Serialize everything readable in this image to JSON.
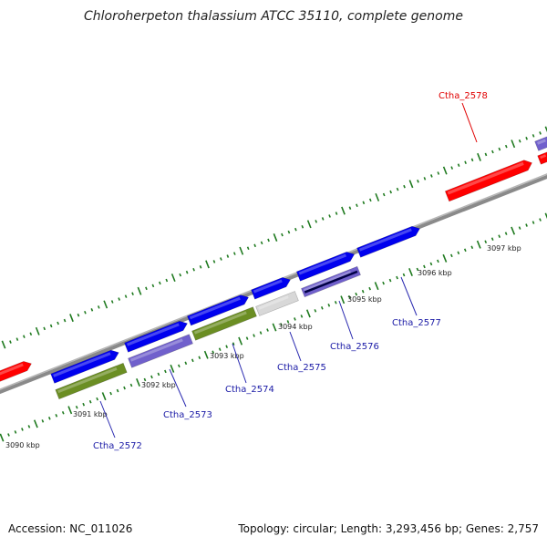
{
  "title": "Chloroherpeton thalassium ATCC 35110, complete genome",
  "accession_text": "Accession: NC_011026",
  "summary_text": "Topology: circular; Length: 3,293,456 bp; Genes: 2,757",
  "colors": {
    "forward_gene": "#0000ee",
    "reverse_gene": "#7060cc",
    "rna_gene": "#d8d8d8",
    "highlight_gene": "#ff0000",
    "olive_gene": "#6b8e23",
    "backbone": "#8a8a8a",
    "ticks": "#1f7a1f",
    "gene_label": "#1a1aa6",
    "highlight_label": "#e00000"
  },
  "scale_labels": [
    "3090 kbp",
    "3091 kbp",
    "3092 kbp",
    "3093 kbp",
    "3094 kbp",
    "3095 kbp",
    "3096 kbp",
    "3097 kbp"
  ],
  "gene_labels": [
    {
      "name": "Ctha_2572",
      "color": "blue"
    },
    {
      "name": "Ctha_2573",
      "color": "blue"
    },
    {
      "name": "Ctha_2574",
      "color": "blue"
    },
    {
      "name": "Ctha_2575",
      "color": "blue"
    },
    {
      "name": "Ctha_2576",
      "color": "blue"
    },
    {
      "name": "Ctha_2577",
      "color": "blue"
    },
    {
      "name": "Ctha_2578",
      "color": "red"
    }
  ]
}
